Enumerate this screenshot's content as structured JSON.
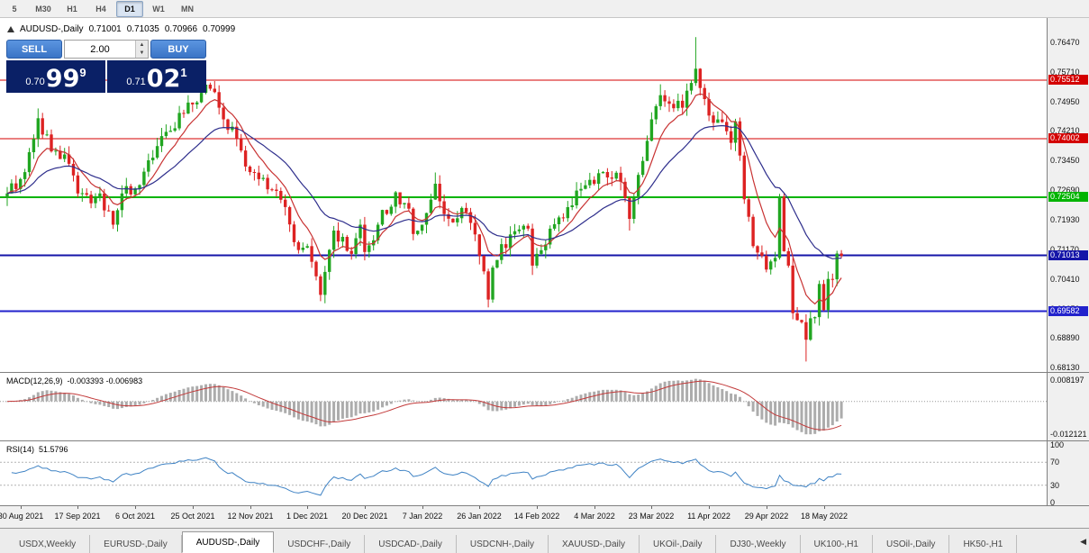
{
  "toolbar": {
    "timeframes": [
      {
        "label": "5",
        "active": false
      },
      {
        "label": "M30",
        "active": false
      },
      {
        "label": "H1",
        "active": false
      },
      {
        "label": "H4",
        "active": false
      },
      {
        "label": "D1",
        "active": true
      },
      {
        "label": "W1",
        "active": false
      },
      {
        "label": "MN",
        "active": false
      }
    ]
  },
  "chart_header": {
    "symbol_period": "AUDUSD-,Daily",
    "open": "0.71001",
    "high": "0.71035",
    "low": "0.70966",
    "close": "0.70999"
  },
  "trade_panel": {
    "sell_label": "SELL",
    "buy_label": "BUY",
    "lots": "2.00",
    "spin_up_icon": "▲",
    "spin_down_icon": "▼",
    "sell_price": {
      "prefix": "0.70",
      "big": "99",
      "sup": "9"
    },
    "buy_price": {
      "prefix": "0.71",
      "big": "02",
      "sup": "1"
    }
  },
  "chart_data": {
    "type": "candlestick",
    "symbol": "AUDUSD-",
    "timeframe": "Daily",
    "candle_count": 190,
    "y_range": [
      0.68,
      0.771
    ],
    "y_axis_labels": [
      "0.76470",
      "0.75710",
      "0.74950",
      "0.74210",
      "0.73450",
      "0.72690",
      "0.71930",
      "0.71170",
      "0.70410",
      "0.69650",
      "0.68890",
      "0.68130"
    ],
    "x_labels": [
      {
        "label": "30 Aug 2021",
        "index": 3
      },
      {
        "label": "17 Sep 2021",
        "index": 16
      },
      {
        "label": "6 Oct 2021",
        "index": 29
      },
      {
        "label": "25 Oct 2021",
        "index": 42
      },
      {
        "label": "12 Nov 2021",
        "index": 55
      },
      {
        "label": "1 Dec 2021",
        "index": 68
      },
      {
        "label": "20 Dec 2021",
        "index": 81
      },
      {
        "label": "7 Jan 2022",
        "index": 94
      },
      {
        "label": "26 Jan 2022",
        "index": 107
      },
      {
        "label": "14 Feb 2022",
        "index": 120
      },
      {
        "label": "4 Mar 2022",
        "index": 133
      },
      {
        "label": "23 Mar 2022",
        "index": 146
      },
      {
        "label": "11 Apr 2022",
        "index": 159
      },
      {
        "label": "29 Apr 2022",
        "index": 172
      },
      {
        "label": "18 May 2022",
        "index": 185
      }
    ],
    "price_path_anchors": [
      [
        0,
        0.726
      ],
      [
        3,
        0.7297
      ],
      [
        6,
        0.74
      ],
      [
        7,
        0.7453
      ],
      [
        10,
        0.7368
      ],
      [
        13,
        0.736
      ],
      [
        16,
        0.726
      ],
      [
        19,
        0.7235
      ],
      [
        21,
        0.726
      ],
      [
        24,
        0.718
      ],
      [
        26,
        0.726
      ],
      [
        29,
        0.7273
      ],
      [
        32,
        0.7345
      ],
      [
        36,
        0.7418
      ],
      [
        40,
        0.7465
      ],
      [
        44,
        0.7518
      ],
      [
        45,
        0.7539
      ],
      [
        47,
        0.752
      ],
      [
        49,
        0.745
      ],
      [
        52,
        0.74
      ],
      [
        54,
        0.7329
      ],
      [
        58,
        0.73
      ],
      [
        60,
        0.727
      ],
      [
        63,
        0.7225
      ],
      [
        66,
        0.7115
      ],
      [
        68,
        0.7125
      ],
      [
        71,
        0.7
      ],
      [
        74,
        0.7165
      ],
      [
        78,
        0.7105
      ],
      [
        80,
        0.718
      ],
      [
        81,
        0.711
      ],
      [
        84,
        0.718
      ],
      [
        88,
        0.7263
      ],
      [
        91,
        0.7221
      ],
      [
        92,
        0.7156
      ],
      [
        95,
        0.721
      ],
      [
        97,
        0.7285
      ],
      [
        99,
        0.7207
      ],
      [
        101,
        0.7186
      ],
      [
        103,
        0.7223
      ],
      [
        106,
        0.7155
      ],
      [
        107,
        0.71
      ],
      [
        109,
        0.6988
      ],
      [
        110,
        0.707
      ],
      [
        112,
        0.713
      ],
      [
        118,
        0.717
      ],
      [
        119,
        0.7075
      ],
      [
        120,
        0.7105
      ],
      [
        127,
        0.7225
      ],
      [
        132,
        0.7295
      ],
      [
        135,
        0.7315
      ],
      [
        139,
        0.729
      ],
      [
        141,
        0.7195
      ],
      [
        145,
        0.7395
      ],
      [
        148,
        0.7512
      ],
      [
        150,
        0.749
      ],
      [
        153,
        0.748
      ],
      [
        156,
        0.758
      ],
      [
        159,
        0.746
      ],
      [
        161,
        0.745
      ],
      [
        164,
        0.739
      ],
      [
        165,
        0.7445
      ],
      [
        167,
        0.7245
      ],
      [
        169,
        0.7125
      ],
      [
        172,
        0.7065
      ],
      [
        174,
        0.7095
      ],
      [
        175,
        0.7252
      ],
      [
        176,
        0.7112
      ],
      [
        177,
        0.7075
      ],
      [
        178,
        0.6953
      ],
      [
        180,
        0.693
      ],
      [
        181,
        0.6885
      ],
      [
        182,
        0.694
      ],
      [
        183,
        0.6943
      ],
      [
        184,
        0.7028
      ],
      [
        185,
        0.6961
      ],
      [
        186,
        0.7041
      ],
      [
        187,
        0.704
      ],
      [
        188,
        0.7106
      ],
      [
        189,
        0.71
      ]
    ],
    "spike_highs": {
      "7": 0.7478,
      "45": 0.7555,
      "97": 0.7314,
      "148": 0.754,
      "156": 0.7661
    },
    "spike_lows": {
      "24": 0.717,
      "71": 0.6993,
      "109": 0.6968,
      "119": 0.7051,
      "141": 0.7165,
      "181": 0.6829
    },
    "level_lines": [
      {
        "price": 0.75512,
        "label": "0.75512",
        "color": "#d40000",
        "width": 1
      },
      {
        "price": 0.74002,
        "label": "0.74002",
        "color": "#d40000",
        "width": 1
      },
      {
        "price": 0.72504,
        "label": "0.72504",
        "color": "#00b400",
        "width": 2
      },
      {
        "price": 0.71013,
        "label": "0.71013",
        "color": "#1515a8",
        "width": 2
      },
      {
        "price": 0.69582,
        "label": "0.69582",
        "color": "#2222cc",
        "width": 2
      }
    ],
    "moving_averages": [
      {
        "period": 8,
        "color": "#c83232"
      },
      {
        "period": 24,
        "color": "#2e2e8c"
      }
    ],
    "colors": {
      "up": "#21a621",
      "down": "#dd2222",
      "macd_hist": "#acacac",
      "macd_signal": "#c23a3a",
      "rsi_line": "#3e82c4"
    },
    "indicators": {
      "macd": {
        "title": "MACD(12,26,9)",
        "values_text": "-0.003393 -0.006983",
        "fast": 12,
        "slow": 26,
        "signal": 9,
        "scale_labels": [
          "0.008197",
          "-0.012121"
        ]
      },
      "rsi": {
        "title": "RSI(14)",
        "value_text": "51.5796",
        "period": 14,
        "scale_labels": [
          "100",
          "70",
          "30",
          "0"
        ],
        "levels": [
          70,
          30
        ]
      }
    }
  },
  "tabs": {
    "active_index": 2,
    "scroll_icon": "◀",
    "items": [
      "USDX,Weekly",
      "EURUSD-,Daily",
      "AUDUSD-,Daily",
      "USDCHF-,Daily",
      "USDCAD-,Daily",
      "USDCNH-,Daily",
      "XAUUSD-,Daily",
      "UKOil-,Daily",
      "DJ30-,Weekly",
      "UK100-,H1",
      "USOil-,Daily",
      "HK50-,H1"
    ]
  }
}
